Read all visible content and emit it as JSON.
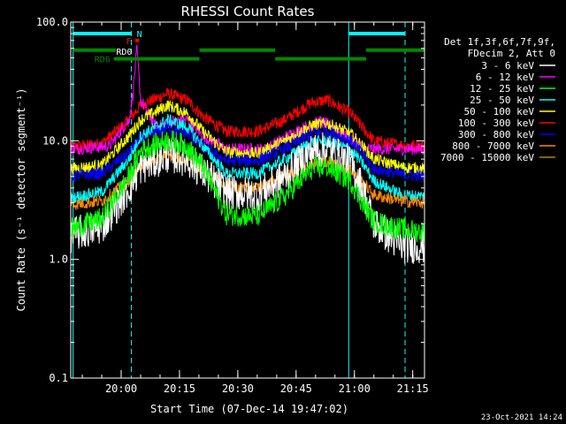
{
  "chart_data": {
    "type": "line",
    "title": "RHESSI Count Rates",
    "xlabel": "Start Time (07-Dec-14 19:47:02)",
    "ylabel": "Count Rate (s⁻¹ detector segment⁻¹)",
    "y_scale": "log",
    "ylim": [
      0.1,
      100.0
    ],
    "xlim_minutes": [
      0,
      91
    ],
    "x_ticks": [
      {
        "label": "20:00",
        "minute": 12.97
      },
      {
        "label": "20:15",
        "minute": 27.97
      },
      {
        "label": "20:30",
        "minute": 42.97
      },
      {
        "label": "20:45",
        "minute": 57.97
      },
      {
        "label": "21:00",
        "minute": 72.97
      },
      {
        "label": "21:15",
        "minute": 87.97
      }
    ],
    "y_ticks": [
      {
        "label": "100.0",
        "value": 100
      },
      {
        "label": "10.0",
        "value": 10
      },
      {
        "label": "1.0",
        "value": 1
      },
      {
        "label": "0.1",
        "value": 0.1
      }
    ],
    "legend_header": [
      "Det 1f,3f,6f,7f,9f,",
      "FDecim 2, Att 0"
    ],
    "legend_position": "right",
    "series": [
      {
        "name": "3 - 6 keV",
        "color": "#ffffff",
        "x": [
          0,
          8,
          15,
          18,
          25,
          30,
          34,
          40,
          48,
          55,
          62,
          66,
          72,
          75,
          78,
          85,
          91
        ],
        "y": [
          1.6,
          1.9,
          4.0,
          6.0,
          7.6,
          7.0,
          5.5,
          3.7,
          3.5,
          5.0,
          8.2,
          8.4,
          6.5,
          4.0,
          2.0,
          1.3,
          1.3
        ]
      },
      {
        "name": "6 - 12 keV",
        "color": "#ff00ff",
        "x": [
          0,
          10,
          15,
          16,
          17,
          18,
          22,
          26,
          30,
          34,
          40,
          50,
          58,
          64,
          68,
          72,
          76,
          82,
          91
        ],
        "y": [
          8.5,
          9.0,
          15,
          25,
          60,
          22,
          13,
          14.5,
          15,
          11,
          8.5,
          8.5,
          12,
          14.5,
          13,
          10,
          8.5,
          8.5,
          8.5
        ]
      },
      {
        "name": "12 - 25 keV",
        "color": "#00ff00",
        "x": [
          0,
          8,
          15,
          18,
          25,
          30,
          34,
          40,
          48,
          55,
          62,
          66,
          72,
          75,
          78,
          85,
          91
        ],
        "y": [
          1.8,
          2.2,
          5.0,
          8.3,
          10.2,
          9.0,
          6.0,
          2.4,
          2.3,
          3.4,
          5.8,
          6.0,
          4.6,
          3.0,
          2.1,
          1.8,
          1.7
        ]
      },
      {
        "name": "25 - 50 keV",
        "color": "#00ffff",
        "x": [
          0,
          8,
          15,
          18,
          25,
          30,
          34,
          40,
          48,
          55,
          62,
          66,
          72,
          75,
          78,
          85,
          91
        ],
        "y": [
          3.3,
          3.7,
          7.0,
          11.0,
          15.0,
          13.0,
          9.0,
          5.3,
          5.3,
          7.0,
          9.7,
          10.0,
          8.4,
          6.5,
          4.6,
          3.5,
          3.4
        ]
      },
      {
        "name": "50 - 100 keV",
        "color": "#ffff00",
        "x": [
          0,
          8,
          15,
          18,
          25,
          30,
          34,
          40,
          48,
          55,
          62,
          66,
          72,
          75,
          78,
          85,
          91
        ],
        "y": [
          5.8,
          6.2,
          11.0,
          15.0,
          20.0,
          17.0,
          12.0,
          8.0,
          7.8,
          10.0,
          13.5,
          14.0,
          11.5,
          9.0,
          7.0,
          6.0,
          5.8
        ]
      },
      {
        "name": "100 - 300 keV",
        "color": "#ff0000",
        "x": [
          0,
          8,
          15,
          18,
          25,
          30,
          34,
          40,
          48,
          55,
          62,
          66,
          72,
          75,
          78,
          85,
          91
        ],
        "y": [
          8.8,
          9.5,
          15.0,
          20.0,
          25.0,
          22.0,
          16.0,
          12.0,
          12.0,
          15.0,
          21.0,
          22.0,
          17.0,
          13.0,
          10.0,
          9.2,
          9.0
        ]
      },
      {
        "name": "300 - 800 keV",
        "color": "#0000ff",
        "x": [
          0,
          8,
          15,
          18,
          25,
          30,
          34,
          40,
          48,
          55,
          62,
          66,
          72,
          75,
          78,
          85,
          91
        ],
        "y": [
          5.0,
          5.3,
          8.0,
          10.5,
          13.0,
          11.5,
          9.0,
          6.8,
          6.8,
          8.5,
          11.5,
          12.0,
          10.0,
          7.8,
          5.8,
          5.2,
          5.0
        ]
      },
      {
        "name": "800 - 7000 keV",
        "color": "#ff8800",
        "x": [
          0,
          8,
          15,
          18,
          25,
          30,
          34,
          40,
          48,
          55,
          62,
          66,
          72,
          75,
          78,
          85,
          91
        ],
        "y": [
          2.9,
          3.1,
          4.6,
          6.2,
          7.6,
          6.8,
          5.5,
          4.1,
          4.0,
          5.0,
          6.6,
          6.8,
          5.7,
          4.5,
          3.5,
          3.1,
          3.0
        ]
      },
      {
        "name": "7000 - 15000 keV",
        "color": "#aa8800",
        "x": [],
        "y": []
      }
    ],
    "vertical_markers": [
      {
        "minute": 0.6,
        "style": "solid",
        "color": "#00ffff"
      },
      {
        "minute": 15.6,
        "style": "dashed",
        "color": "#00ffff"
      },
      {
        "minute": 71.5,
        "style": "solid",
        "color": "#00ffff"
      },
      {
        "minute": 86.0,
        "style": "dashed",
        "color": "#00ffff"
      }
    ],
    "flag_bars": [
      {
        "label": "N",
        "color": "#00ffff",
        "value": 80,
        "segments": [
          [
            0.6,
            15.6
          ],
          [
            71.5,
            86.0
          ]
        ]
      },
      {
        "label": "F",
        "color": "#ff0000",
        "value": 70,
        "segments": [
          [
            16.6,
            17.6
          ]
        ]
      },
      {
        "label": "RD0",
        "color": "#ffffff",
        "value": 57,
        "segments": []
      },
      {
        "label": "",
        "color": "#008800",
        "value": 58,
        "segments": [
          [
            0.6,
            11.6
          ],
          [
            33.1,
            52.6
          ],
          [
            76.0,
            91
          ]
        ]
      },
      {
        "label": "RD6",
        "color": "#008800",
        "value": 49,
        "segments": [
          [
            11.1,
            33.1
          ],
          [
            52.6,
            76.0
          ]
        ]
      }
    ]
  },
  "footer": {
    "timestamp": "23-Oct-2021 14:24"
  }
}
